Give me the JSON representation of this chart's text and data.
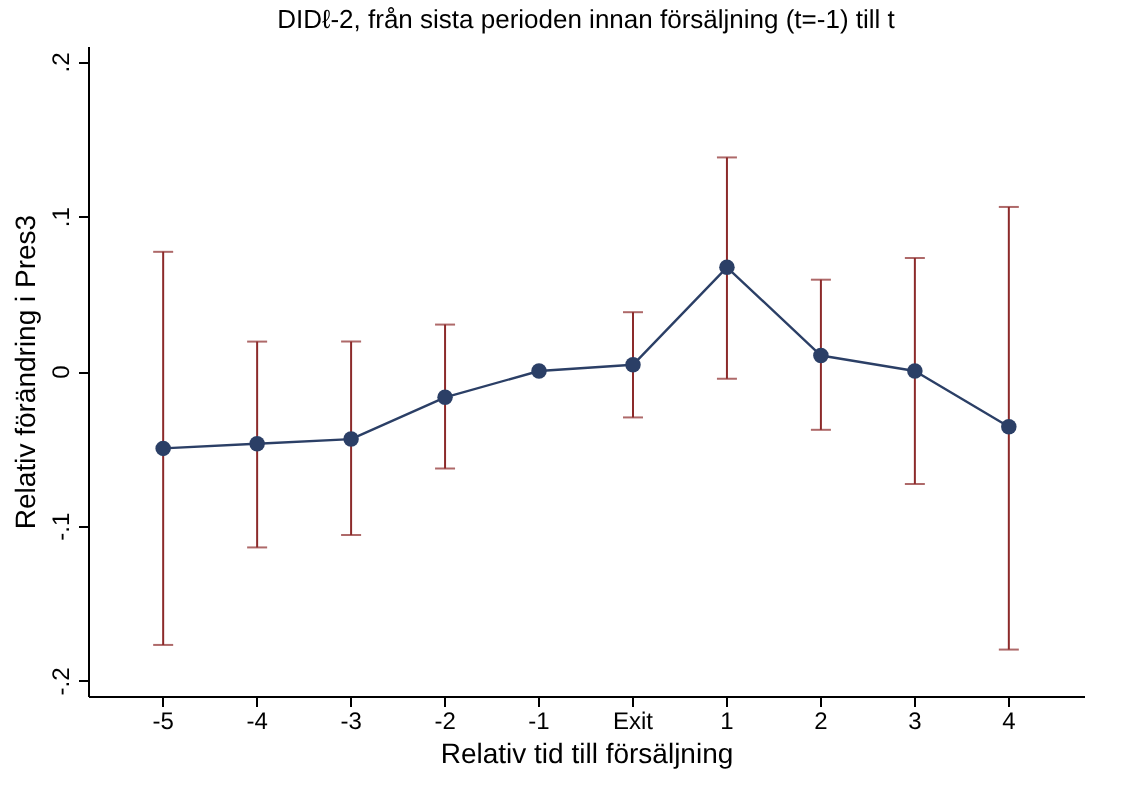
{
  "chart_data": {
    "type": "line",
    "title": "DIDℓ-2, från sista perioden innan försäljning (t=-1) till t",
    "xlabel": "Relativ tid till försäljning",
    "ylabel": "Relativ förändring i Pres3",
    "categories": [
      "-5",
      "-4",
      "-3",
      "-2",
      "-1",
      "Exit",
      "1",
      "2",
      "3",
      "4"
    ],
    "series": [
      {
        "color": "#2b3f66",
        "values": [
          -0.05,
          -0.047,
          -0.044,
          -0.017,
          0,
          0.004,
          0.067,
          0.01,
          0,
          -0.036
        ],
        "errors": [
          [
            -0.177,
            0.077
          ],
          [
            -0.114,
            0.019
          ],
          [
            -0.106,
            0.019
          ],
          [
            -0.063,
            0.03
          ],
          null,
          [
            -0.03,
            0.038
          ],
          [
            -0.005,
            0.138
          ],
          [
            -0.038,
            0.059
          ],
          [
            -0.073,
            0.073
          ],
          [
            -0.18,
            0.106
          ]
        ]
      }
    ],
    "ylim": [
      -0.21,
      0.21
    ],
    "yticks": [
      {
        "value": -0.2,
        "label": "-.2"
      },
      {
        "value": -0.1,
        "label": "-.1"
      },
      0,
      {
        "value": 0.1,
        "label": ".1"
      },
      {
        "value": 0.2,
        "label": ".2"
      }
    ],
    "grid": false,
    "marker": "circle",
    "line_style": "solid"
  }
}
